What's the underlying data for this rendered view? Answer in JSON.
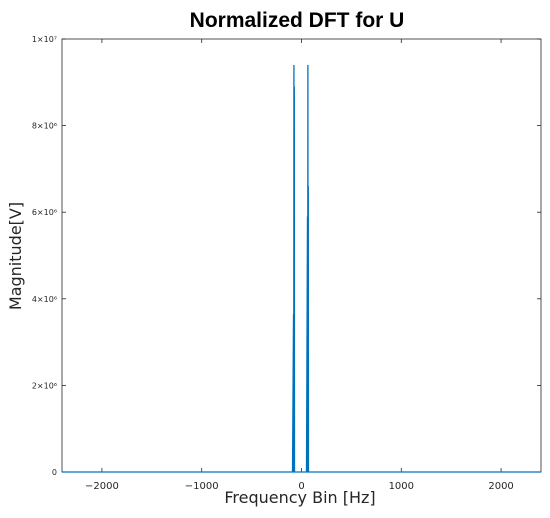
{
  "chart_data": {
    "type": "line",
    "title": "Normalized DFT for U",
    "xlabel": "Frequency Bin [Hz]",
    "ylabel": "Magnitude[V]",
    "xlim": [
      -2400,
      2400
    ],
    "ylim": [
      0,
      10000000
    ],
    "x_ticks": [
      -2000,
      -1000,
      0,
      1000,
      2000
    ],
    "x_tick_labels": [
      "−2000",
      "−1000",
      "0",
      "1000",
      "2000"
    ],
    "y_ticks": [
      0,
      2000000,
      4000000,
      6000000,
      8000000,
      10000000
    ],
    "y_tick_labels": [
      "0",
      "2×10⁶",
      "4×10⁶",
      "6×10⁶",
      "8×10⁶",
      "1×10⁷"
    ],
    "grid": false,
    "series": [
      {
        "color": "#0072bd",
        "x": [
          -2400,
          -90,
          -80,
          -78,
          -76,
          -74,
          -72,
          -70,
          -60,
          50,
          60,
          62,
          64,
          66,
          68,
          70,
          80,
          2400
        ],
        "y": [
          0,
          0,
          3650000,
          0,
          9400000,
          0,
          8900000,
          0,
          0,
          0,
          5900000,
          0,
          9400000,
          0,
          6600000,
          0,
          0,
          0
        ]
      }
    ],
    "colors": {
      "line": "#0072bd",
      "axes": "#262626"
    }
  }
}
